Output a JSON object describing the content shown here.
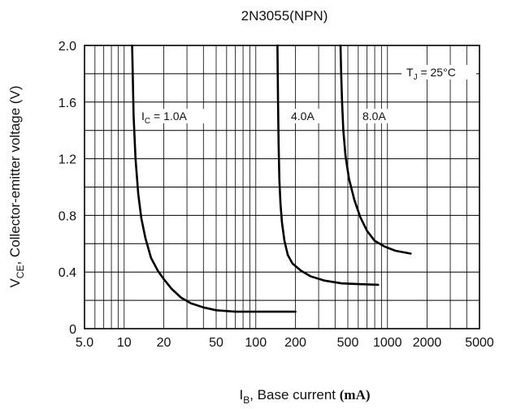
{
  "chart_data": {
    "type": "line",
    "title": "2N3055(NPN)",
    "xlabel": {
      "main": "I",
      "sub": "B",
      "rest": ", Base current ",
      "unit": "(mA)"
    },
    "ylabel": {
      "main": "V",
      "sub": "CE",
      "rest": ", Collector-emitter voltage (V)"
    },
    "x_scale": "log",
    "xlim": [
      5,
      5000
    ],
    "ylim": [
      0,
      2.0
    ],
    "x_ticks": [
      5,
      10,
      20,
      50,
      100,
      200,
      500,
      1000,
      2000,
      5000
    ],
    "x_tick_labels": [
      "5.0",
      "10",
      "20",
      "50",
      "100",
      "200",
      "500",
      "1000",
      "2000",
      "5000"
    ],
    "y_ticks": [
      0,
      0.4,
      0.8,
      1.2,
      1.6,
      2.0
    ],
    "y_tick_labels": [
      "0",
      "0.4",
      "0.8",
      "1.2",
      "1.6",
      "2.0"
    ],
    "y_minor_step": 0.2,
    "grid": true,
    "annotation": {
      "main": "T",
      "sub": "J",
      "rest": " = 25°C"
    },
    "series": [
      {
        "label": {
          "main": "I",
          "sub": "C",
          "rest": " = 1.0A"
        },
        "x": [
          11.5,
          11.8,
          12.2,
          12.8,
          13.5,
          14.5,
          16,
          18,
          20,
          23,
          27,
          32,
          40,
          50,
          70,
          100,
          150,
          200
        ],
        "y": [
          2.0,
          1.5,
          1.2,
          0.95,
          0.78,
          0.64,
          0.5,
          0.41,
          0.35,
          0.28,
          0.22,
          0.18,
          0.15,
          0.13,
          0.12,
          0.12,
          0.12,
          0.12
        ]
      },
      {
        "label": {
          "main": "",
          "sub": "",
          "rest": "4.0A"
        },
        "x": [
          146,
          147.5,
          149,
          151,
          154,
          158,
          165,
          175,
          190,
          220,
          260,
          330,
          450,
          600,
          850
        ],
        "y": [
          2.0,
          1.6,
          1.3,
          1.05,
          0.88,
          0.75,
          0.62,
          0.52,
          0.46,
          0.41,
          0.37,
          0.34,
          0.32,
          0.315,
          0.31
        ]
      },
      {
        "label": {
          "main": "",
          "sub": "",
          "rest": "8.0A"
        },
        "x": [
          440,
          445,
          452,
          462,
          480,
          510,
          560,
          620,
          700,
          800,
          950,
          1150,
          1500
        ],
        "y": [
          2.0,
          1.8,
          1.6,
          1.4,
          1.22,
          1.06,
          0.91,
          0.79,
          0.69,
          0.62,
          0.58,
          0.55,
          0.53
        ]
      }
    ]
  }
}
